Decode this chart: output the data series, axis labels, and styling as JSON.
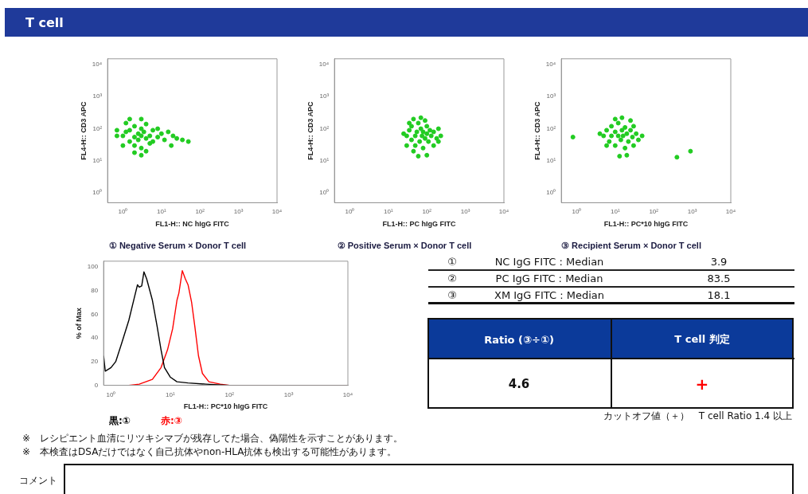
{
  "chart_data": [
    {
      "type": "scatter",
      "title": "① Negative Serum × Donor T cell",
      "xlabel": "FL1-H:: NC hIgG FITC",
      "ylabel": "FL4-H:: CD3 APC",
      "log": "xy",
      "marker": "circle",
      "grid": false,
      "legend": false,
      "xlim": [
        0.4,
        10000
      ],
      "ylim": [
        0.5,
        15000
      ],
      "xticks": [
        {
          "value": 1,
          "label": "10⁰"
        },
        {
          "value": 10,
          "label": "10¹"
        },
        {
          "value": 100,
          "label": "10²"
        },
        {
          "value": 1000,
          "label": "10³"
        },
        {
          "value": 10000,
          "label": "10⁴"
        }
      ],
      "yticks": [
        {
          "value": 1,
          "label": "10⁰"
        },
        {
          "value": 10,
          "label": "10¹"
        },
        {
          "value": 100,
          "label": "10²"
        },
        {
          "value": 1000,
          "label": "10³"
        },
        {
          "value": 10000,
          "label": "10⁴"
        }
      ],
      "series": [
        {
          "color": "#22cc22",
          "x": [
            1,
            1.5,
            1.5,
            2,
            2,
            2,
            2.5,
            2.5,
            3,
            3,
            3,
            3.5,
            4,
            4,
            1.2,
            1,
            1.2,
            5,
            5,
            6,
            6,
            8,
            8,
            2,
            3,
            4,
            10,
            12,
            15,
            20,
            25,
            35,
            50,
            1.5,
            3,
            0.7,
            0.7,
            18
          ],
          "values": [
            60,
            40,
            90,
            55,
            120,
            30,
            70,
            45,
            60,
            100,
            25,
            80,
            50,
            140,
            150,
            30,
            80,
            60,
            35,
            90,
            40,
            55,
            100,
            18,
            15,
            20,
            70,
            45,
            80,
            60,
            50,
            45,
            40,
            200,
            200,
            60,
            90,
            30
          ]
        }
      ]
    },
    {
      "type": "scatter",
      "title": "② Positive Serum × Donor T cell",
      "xlabel": "FL1-H:: PC hIgG FITC",
      "ylabel": "FL4-H:: CD3 APC",
      "log": "xy",
      "marker": "circle",
      "grid": false,
      "legend": false,
      "xlim": [
        0.4,
        10000
      ],
      "ylim": [
        0.5,
        15000
      ],
      "xticks": [
        {
          "value": 1,
          "label": "10⁰"
        },
        {
          "value": 10,
          "label": "10¹"
        },
        {
          "value": 100,
          "label": "10²"
        },
        {
          "value": 1000,
          "label": "10³"
        },
        {
          "value": 10000,
          "label": "10⁴"
        }
      ],
      "yticks": [
        {
          "value": 1,
          "label": "10⁰"
        },
        {
          "value": 10,
          "label": "10¹"
        },
        {
          "value": 100,
          "label": "10²"
        },
        {
          "value": 1000,
          "label": "10³"
        },
        {
          "value": 10000,
          "label": "10⁴"
        }
      ],
      "series": [
        {
          "color": "#22cc22",
          "x": [
            30,
            35,
            40,
            40,
            50,
            50,
            55,
            60,
            65,
            70,
            75,
            80,
            80,
            90,
            100,
            100,
            110,
            120,
            130,
            150,
            180,
            200,
            230,
            45,
            70,
            100,
            60,
            30,
            25,
            35,
            150,
            200,
            90,
            45
          ],
          "values": [
            60,
            90,
            45,
            120,
            60,
            30,
            80,
            150,
            40,
            100,
            60,
            25,
            80,
            50,
            120,
            70,
            40,
            90,
            60,
            80,
            50,
            100,
            60,
            200,
            220,
            15,
            14,
            30,
            70,
            150,
            30,
            40,
            180,
            20
          ]
        }
      ]
    },
    {
      "type": "scatter",
      "title": "③ Recipient Serum × Donor T cell",
      "xlabel": "FL1-H:: PC*10 hIgG FITC",
      "ylabel": "FL4-H:: CD3 APC",
      "log": "xy",
      "marker": "circle",
      "grid": false,
      "legend": false,
      "xlim": [
        0.4,
        10000
      ],
      "ylim": [
        0.5,
        15000
      ],
      "xticks": [
        {
          "value": 1,
          "label": "10⁰"
        },
        {
          "value": 10,
          "label": "10¹"
        },
        {
          "value": 100,
          "label": "10²"
        },
        {
          "value": 1000,
          "label": "10³"
        },
        {
          "value": 10000,
          "label": "10⁴"
        }
      ],
      "yticks": [
        {
          "value": 1,
          "label": "10⁰"
        },
        {
          "value": 10,
          "label": "10¹"
        },
        {
          "value": 100,
          "label": "10²"
        },
        {
          "value": 1000,
          "label": "10³"
        },
        {
          "value": 10000,
          "label": "10⁴"
        }
      ],
      "series": [
        {
          "color": "#22cc22",
          "x": [
            5,
            6,
            7,
            8,
            8,
            10,
            10,
            12,
            12,
            14,
            15,
            16,
            18,
            18,
            20,
            22,
            25,
            28,
            30,
            35,
            40,
            50,
            10,
            15,
            20,
            13,
            6,
            4,
            30,
            25,
            400,
            900,
            0.8
          ],
          "values": [
            60,
            90,
            40,
            120,
            60,
            30,
            80,
            60,
            150,
            45,
            90,
            60,
            25,
            110,
            70,
            40,
            90,
            55,
            120,
            70,
            45,
            60,
            200,
            220,
            15,
            14,
            30,
            70,
            30,
            180,
            13,
            20,
            55
          ]
        }
      ]
    },
    {
      "type": "line",
      "xlabel": "FL1-H:: PC*10 hIgG FITC",
      "ylabel": "% of Max",
      "log": "x",
      "marker": "none",
      "line_style": "solid",
      "grid": false,
      "legend": false,
      "xlim": [
        0.75,
        10000
      ],
      "ylim": [
        0,
        105
      ],
      "xticks": [
        {
          "value": 1,
          "label": "10⁰"
        },
        {
          "value": 10,
          "label": "10¹"
        },
        {
          "value": 100,
          "label": "10²"
        },
        {
          "value": 1000,
          "label": "10³"
        },
        {
          "value": 10000,
          "label": "10⁴"
        }
      ],
      "yticks": [
        0,
        20,
        40,
        60,
        80,
        100
      ],
      "annotations": [
        "黒:①",
        "赤:③"
      ],
      "series": [
        {
          "color": "#000000",
          "x": [
            0.75,
            0.8,
            1,
            1.2,
            1.5,
            2,
            2.5,
            2.8,
            3,
            3.3,
            3.6,
            4,
            5,
            6,
            7,
            8,
            10,
            13,
            20,
            40,
            100,
            10000
          ],
          "values": [
            25,
            12,
            15,
            20,
            35,
            55,
            75,
            85,
            83,
            84,
            96,
            90,
            72,
            50,
            30,
            15,
            7,
            3,
            2,
            1,
            0,
            0
          ]
        },
        {
          "color": "#ff0000",
          "x": [
            2,
            3,
            5,
            7,
            9,
            11,
            13,
            14,
            16,
            18,
            20,
            23,
            26,
            30,
            35,
            45,
            70,
            100,
            10000
          ],
          "values": [
            0,
            1,
            5,
            15,
            30,
            48,
            72,
            78,
            97,
            90,
            85,
            70,
            50,
            25,
            10,
            3,
            1,
            0,
            0
          ]
        }
      ]
    },
    {
      "type": "other",
      "title": "T cell",
      "annotations": [
        "①",
        "NC IgG FITC : Median",
        "3.9",
        "②",
        "PC IgG FITC : Median",
        "83.5",
        "③",
        "XM IgG FITC : Median",
        "18.1",
        "Ratio (③÷①)",
        "T cell 判定",
        "4.6",
        "+",
        "カットオフ値（＋）　T cell  Ratio 1.4 以上",
        "※　レシピエント血清にリツキシマブが残存してた場合、偽陽性を示すことがあります。",
        "※　本検査はDSAだけではなく自己抗体やnon-HLA抗体も検出する可能性があります。",
        "コメント"
      ]
    }
  ]
}
